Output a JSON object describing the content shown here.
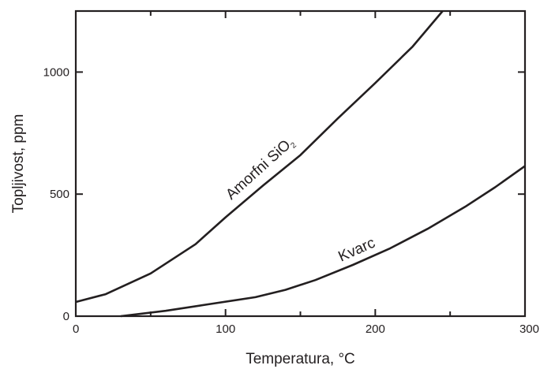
{
  "chart_data": {
    "type": "line",
    "title": "",
    "xlabel": "Temperatura, °C",
    "ylabel": "Topljivost, ppm",
    "xlim": [
      0,
      300
    ],
    "ylim": [
      0,
      1250
    ],
    "x_ticks": [
      0,
      100,
      200,
      300
    ],
    "x_tick_labels": [
      "0",
      "100",
      "200",
      "300"
    ],
    "y_ticks": [
      0,
      500,
      1000
    ],
    "y_tick_labels": [
      "0",
      "500",
      "1000"
    ],
    "grid": false,
    "line_color": "#231f20",
    "series": [
      {
        "label_main": "Amorfni SiO",
        "label_sub": "2",
        "points": [
          [
            0,
            58
          ],
          [
            20,
            90
          ],
          [
            50,
            175
          ],
          [
            80,
            295
          ],
          [
            100,
            405
          ],
          [
            125,
            535
          ],
          [
            150,
            660
          ],
          [
            175,
            810
          ],
          [
            200,
            955
          ],
          [
            225,
            1105
          ],
          [
            245,
            1250
          ]
        ]
      },
      {
        "label_main": "Kvarc",
        "label_sub": "",
        "points": [
          [
            30,
            0
          ],
          [
            60,
            22
          ],
          [
            90,
            50
          ],
          [
            120,
            78
          ],
          [
            140,
            108
          ],
          [
            160,
            148
          ],
          [
            185,
            210
          ],
          [
            210,
            278
          ],
          [
            235,
            358
          ],
          [
            260,
            448
          ],
          [
            280,
            528
          ],
          [
            300,
            615
          ]
        ]
      }
    ]
  }
}
